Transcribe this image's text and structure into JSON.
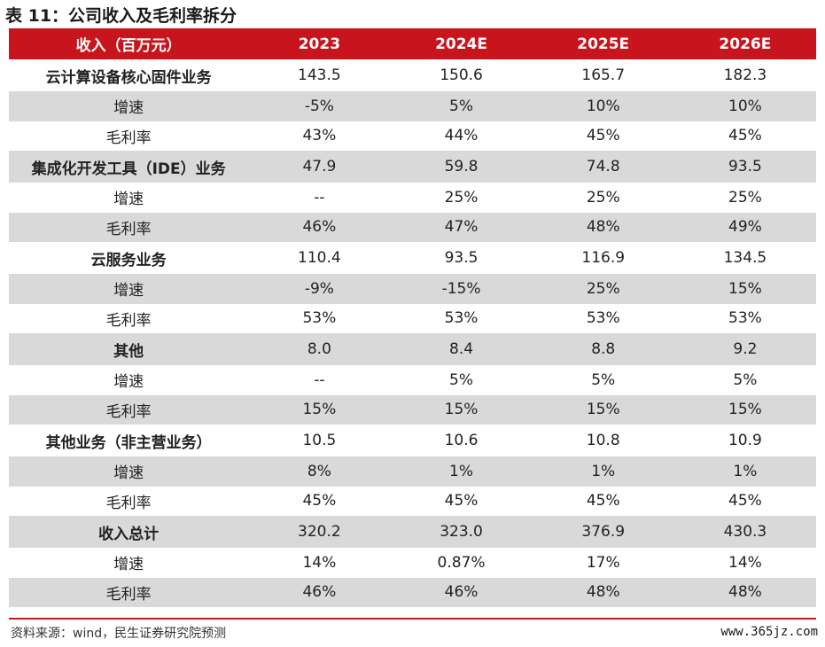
{
  "title": "表 11：公司收入及毛利率拆分",
  "header": {
    "label": "收入（百万元）",
    "years": [
      "2023",
      "2024E",
      "2025E",
      "2026E"
    ]
  },
  "rows": [
    {
      "label": "云计算设备核心固件业务",
      "bold": true,
      "shade": false,
      "values": [
        "143.5",
        "150.6",
        "165.7",
        "182.3"
      ]
    },
    {
      "label": "增速",
      "bold": false,
      "shade": true,
      "values": [
        "-5%",
        "5%",
        "10%",
        "10%"
      ]
    },
    {
      "label": "毛利率",
      "bold": false,
      "shade": false,
      "values": [
        "43%",
        "44%",
        "45%",
        "45%"
      ]
    },
    {
      "label": "集成化开发工具（IDE）业务",
      "bold": true,
      "shade": true,
      "values": [
        "47.9",
        "59.8",
        "74.8",
        "93.5"
      ]
    },
    {
      "label": "增速",
      "bold": false,
      "shade": false,
      "values": [
        "--",
        "25%",
        "25%",
        "25%"
      ]
    },
    {
      "label": "毛利率",
      "bold": false,
      "shade": true,
      "values": [
        "46%",
        "47%",
        "48%",
        "49%"
      ]
    },
    {
      "label": "云服务业务",
      "bold": true,
      "shade": false,
      "values": [
        "110.4",
        "93.5",
        "116.9",
        "134.5"
      ]
    },
    {
      "label": "增速",
      "bold": false,
      "shade": true,
      "values": [
        "-9%",
        "-15%",
        "25%",
        "15%"
      ]
    },
    {
      "label": "毛利率",
      "bold": false,
      "shade": false,
      "values": [
        "53%",
        "53%",
        "53%",
        "53%"
      ]
    },
    {
      "label": "其他",
      "bold": true,
      "shade": true,
      "values": [
        "8.0",
        "8.4",
        "8.8",
        "9.2"
      ]
    },
    {
      "label": "增速",
      "bold": false,
      "shade": false,
      "values": [
        "--",
        "5%",
        "5%",
        "5%"
      ]
    },
    {
      "label": "毛利率",
      "bold": false,
      "shade": true,
      "values": [
        "15%",
        "15%",
        "15%",
        "15%"
      ]
    },
    {
      "label": "其他业务（非主营业务）",
      "bold": true,
      "shade": false,
      "values": [
        "10.5",
        "10.6",
        "10.8",
        "10.9"
      ]
    },
    {
      "label": "增速",
      "bold": false,
      "shade": true,
      "values": [
        "8%",
        "1%",
        "1%",
        "1%"
      ]
    },
    {
      "label": "毛利率",
      "bold": false,
      "shade": false,
      "values": [
        "45%",
        "45%",
        "45%",
        "45%"
      ]
    },
    {
      "label": "收入总计",
      "bold": true,
      "shade": true,
      "values": [
        "320.2",
        "323.0",
        "376.9",
        "430.3"
      ]
    },
    {
      "label": "增速",
      "bold": false,
      "shade": false,
      "values": [
        "14%",
        "0.87%",
        "17%",
        "14%"
      ]
    },
    {
      "label": "毛利率",
      "bold": false,
      "shade": true,
      "values": [
        "46%",
        "46%",
        "48%",
        "48%"
      ]
    }
  ],
  "source": "资料来源：wind，民生证券研究院预测",
  "watermark": "www.365jz.com",
  "colors": {
    "header_bg": "#c8141c",
    "header_text": "#ffffff",
    "shade_bg": "#d9d9d9",
    "rule": "#c8141c"
  }
}
